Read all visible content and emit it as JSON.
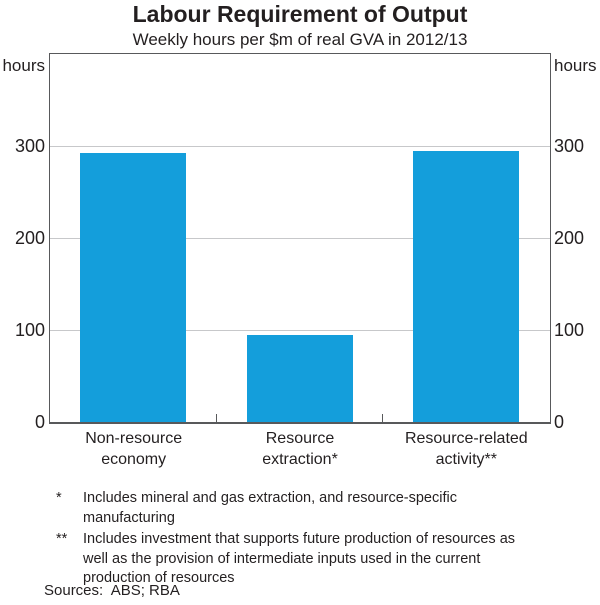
{
  "title": "Labour Requirement of Output",
  "subtitle": "Weekly hours per $m of real GVA in 2012/13",
  "axis": {
    "unit_left": "hours",
    "unit_right": "hours"
  },
  "chart_data": {
    "type": "bar",
    "title": "Labour Requirement of Output",
    "subtitle": "Weekly hours per $m of real GVA in 2012/13",
    "ylabel": "hours",
    "xlabel": "",
    "categories": [
      "Non-resource\neconomy",
      "Resource\nextraction*",
      "Resource-related\nactivity**"
    ],
    "values": [
      293,
      95,
      295
    ],
    "ylim": [
      0,
      400
    ],
    "yticks": [
      0,
      100,
      200,
      300
    ],
    "grid": true,
    "legend": "none",
    "bar_color": "#149edb",
    "grid_color": "#c7c8ca",
    "frame_color": "#58595b"
  },
  "footnotes": [
    {
      "marker": "*",
      "text": "Includes mineral and gas extraction, and resource-specific\nmanufacturing"
    },
    {
      "marker": "**",
      "text": "Includes investment that supports future production of resources as\nwell as the provision of intermediate inputs used in the current\nproduction of resources"
    }
  ],
  "sources": "Sources:  ABS; RBA"
}
